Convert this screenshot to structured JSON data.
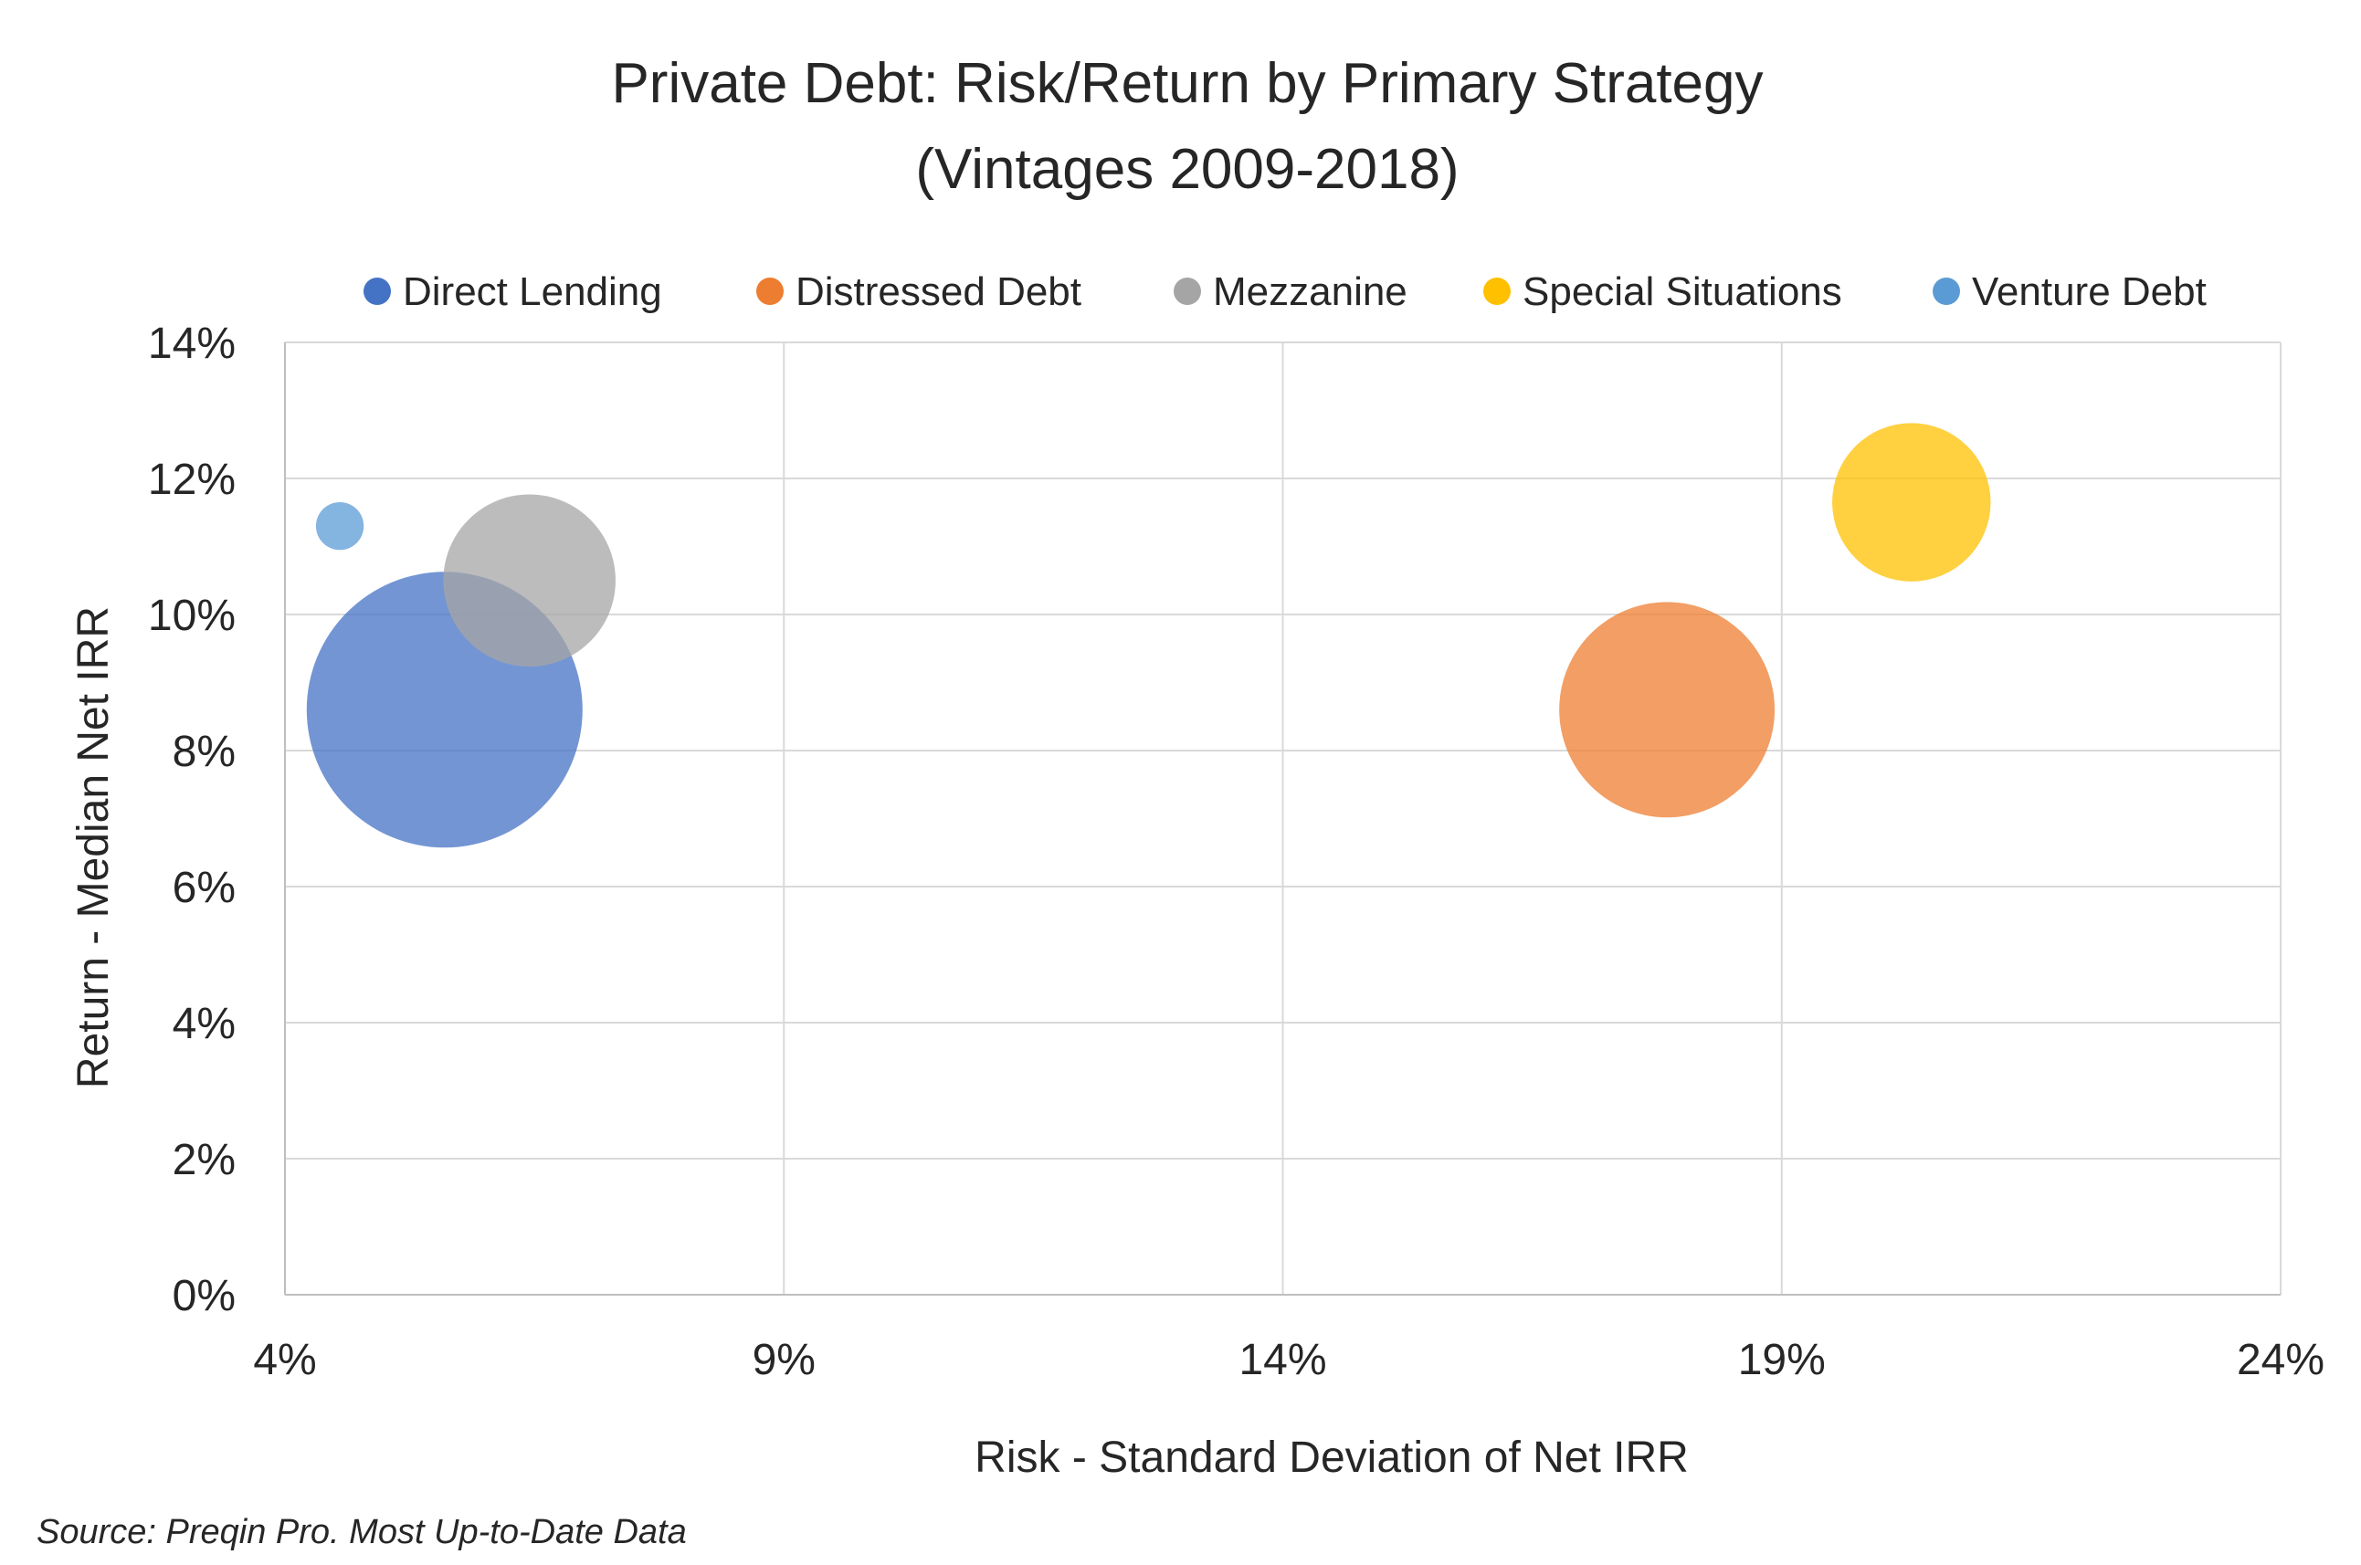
{
  "chart_data": {
    "type": "bubble",
    "title_line1": "Private Debt: Risk/Return by Primary Strategy",
    "title_line2": "(Vintages 2009-2018)",
    "xlabel": "Risk - Standard Deviation of Net IRR",
    "ylabel": "Return - Median Net IRR",
    "xlim": [
      4,
      24
    ],
    "ylim": [
      0,
      14
    ],
    "x_ticks": [
      "4%",
      "9%",
      "14%",
      "19%",
      "24%"
    ],
    "y_ticks": [
      "0%",
      "2%",
      "4%",
      "6%",
      "8%",
      "10%",
      "12%",
      "14%"
    ],
    "grid": true,
    "legend_position": "top",
    "series": [
      {
        "name": "Direct Lending",
        "x": 5.6,
        "y": 8.6,
        "color": "#4472C4",
        "relative_size": 1.0
      },
      {
        "name": "Distressed Debt",
        "x": 17.85,
        "y": 8.6,
        "color": "#ED7D31",
        "relative_size": 0.61
      },
      {
        "name": "Mezzanine",
        "x": 6.45,
        "y": 10.5,
        "color": "#A5A5A5",
        "relative_size": 0.39
      },
      {
        "name": "Special Situations",
        "x": 20.3,
        "y": 11.65,
        "color": "#FFC000",
        "relative_size": 0.33
      },
      {
        "name": "Venture Debt",
        "x": 4.55,
        "y": 11.3,
        "color": "#5B9BD5",
        "relative_size": 0.03
      }
    ]
  },
  "source_note": "Source: Preqin Pro. Most Up-to-Date Data"
}
